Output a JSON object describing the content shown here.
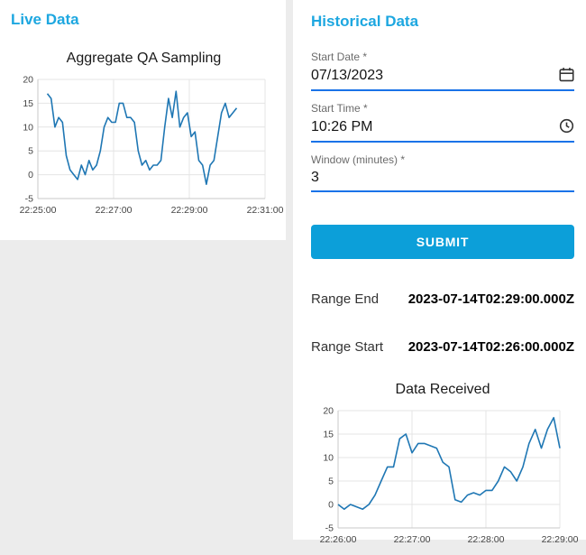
{
  "colors": {
    "accent": "#1da7e0",
    "submit_bg": "#0c9fd9",
    "underline": "#1a73e8",
    "chart_line": "#1f77b4"
  },
  "left_panel": {
    "heading": "Live Data"
  },
  "right_panel": {
    "heading": "Historical Data",
    "form": {
      "start_date": {
        "label": "Start Date *",
        "value": "07/13/2023"
      },
      "start_time": {
        "label": "Start Time *",
        "value": "10:26 PM"
      },
      "window": {
        "label": "Window (minutes) *",
        "value": "3"
      },
      "submit_label": "SUBMIT"
    },
    "range_end": {
      "label": "Range End",
      "value": "2023-07-14T02:29:00.000Z"
    },
    "range_start": {
      "label": "Range Start",
      "value": "2023-07-14T02:26:00.000Z"
    }
  },
  "chart_data": [
    {
      "type": "line",
      "title": "Aggregate QA Sampling",
      "xlabel": "",
      "ylabel": "",
      "grid": true,
      "xlim": [
        0,
        360
      ],
      "ylim": [
        -5,
        20
      ],
      "yticks": [
        -5,
        0,
        5,
        10,
        15,
        20
      ],
      "xticks": [
        "22:25:00",
        "22:27:00",
        "22:29:00",
        "22:31:00"
      ],
      "xtick_values": [
        0,
        120,
        240,
        360
      ],
      "x": [
        15,
        21,
        27,
        33,
        39,
        45,
        51,
        57,
        63,
        69,
        75,
        81,
        87,
        93,
        99,
        105,
        111,
        117,
        123,
        129,
        135,
        141,
        147,
        153,
        159,
        165,
        171,
        177,
        183,
        189,
        195,
        201,
        207,
        213,
        219,
        225,
        231,
        237,
        243,
        249,
        255,
        261,
        267,
        273,
        279,
        285,
        291,
        297,
        303,
        309,
        315
      ],
      "y": [
        17,
        16,
        10,
        12,
        11,
        4,
        1,
        0,
        -1,
        2,
        0,
        3,
        1,
        2,
        5,
        10,
        12,
        11,
        11,
        15,
        15,
        12,
        12,
        11,
        5,
        2,
        3,
        1,
        2,
        2,
        3,
        10,
        16,
        12,
        17.5,
        10,
        12,
        13,
        8,
        9,
        3,
        2,
        -2,
        2,
        3,
        8,
        13,
        15,
        12,
        13,
        14
      ]
    },
    {
      "type": "line",
      "title": "Data Received",
      "xlabel": "",
      "ylabel": "",
      "grid": true,
      "xlim": [
        0,
        180
      ],
      "ylim": [
        -5,
        20
      ],
      "yticks": [
        -5,
        0,
        5,
        10,
        15,
        20
      ],
      "xticks": [
        "22:26:00",
        "22:27:00",
        "22:28:00",
        "22:29:00"
      ],
      "xtick_values": [
        0,
        60,
        120,
        180
      ],
      "x": [
        0,
        5,
        10,
        15,
        20,
        25,
        30,
        35,
        40,
        45,
        50,
        55,
        60,
        65,
        70,
        75,
        80,
        85,
        90,
        95,
        100,
        105,
        110,
        115,
        120,
        125,
        130,
        135,
        140,
        145,
        150,
        155,
        160,
        165,
        170,
        175,
        180
      ],
      "y": [
        0,
        -1,
        0,
        -0.5,
        -1,
        0,
        2,
        5,
        8,
        8,
        14,
        15,
        11,
        13,
        13,
        12.5,
        12,
        9,
        8,
        1,
        0.5,
        2,
        2.5,
        2,
        3,
        3,
        5,
        8,
        7,
        5,
        8,
        13,
        16,
        12,
        16,
        18.5,
        12
      ]
    }
  ]
}
